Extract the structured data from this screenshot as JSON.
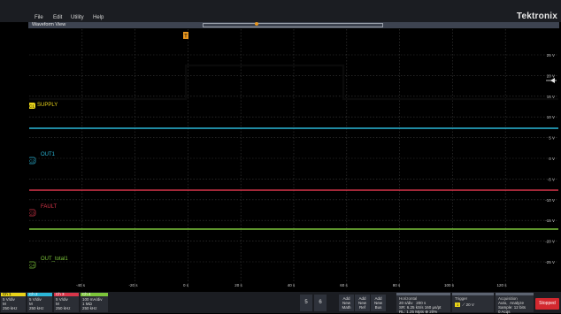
{
  "menu": {
    "items": [
      "File",
      "Edit",
      "Utility",
      "Help"
    ],
    "brand": "Tektronix"
  },
  "waveform_view": {
    "title": "Waveform View"
  },
  "graticule": {
    "x_ticks": [
      "-40 s",
      "-20 s",
      "0 s",
      "20 s",
      "40 s",
      "60 s",
      "80 s",
      "100 s",
      "120 s"
    ],
    "y_ticks": [
      "25 V",
      "20 V",
      "15 V",
      "10 V",
      "5 V",
      "0 V",
      "-5 V",
      "-10 V",
      "-15 V",
      "-20 V",
      "-25 V"
    ],
    "trigger_marker": "T"
  },
  "channels": [
    {
      "id": "1",
      "label": "SUPPLY",
      "color": "#e8d31a"
    },
    {
      "id": "2",
      "label": "OUT1",
      "color": "#2bb7d8"
    },
    {
      "id": "3",
      "label": "FAULT",
      "color": "#d9364a"
    },
    {
      "id": "4",
      "label": "OUT_total1",
      "color": "#7cc53a"
    }
  ],
  "bottom": {
    "ch_badges": [
      {
        "name": "Ch 1",
        "lines": [
          "5 V/div",
          "M",
          "250 kHz"
        ]
      },
      {
        "name": "Ch 2",
        "lines": [
          "5 V/div",
          "M",
          "250 kHz"
        ]
      },
      {
        "name": "Ch 3",
        "lines": [
          "5 V/div",
          "M",
          "250 kHz"
        ]
      },
      {
        "name": "Ch 4",
        "lines": [
          "100 mA/div",
          "1 MΩ",
          "250 kHz"
        ]
      }
    ],
    "square_buttons": [
      "5",
      "6"
    ],
    "add_buttons": [
      [
        "Add",
        "New",
        "Math"
      ],
      [
        "Add",
        "New",
        "Ref"
      ],
      [
        "Add",
        "New",
        "Bus"
      ]
    ],
    "horizontal": {
      "header": "Horizontal",
      "row1a": "20 s/div",
      "row1b": "200 s",
      "row2a": "SR: 6.25 kS/s",
      "row2b": "160 µs/pt",
      "row3a": "RL: 1.25 Mpts",
      "row3b": "⊕ 20%"
    },
    "trigger": {
      "header": "Trigger",
      "channel": "1",
      "level": "20 V"
    },
    "acquisition": {
      "header": "Acquisition",
      "row1a": "Auto,",
      "row1b": "Analyze",
      "row2": "Sample: 12 bits",
      "row3": "0 Acqs"
    },
    "status": "Stopped"
  }
}
